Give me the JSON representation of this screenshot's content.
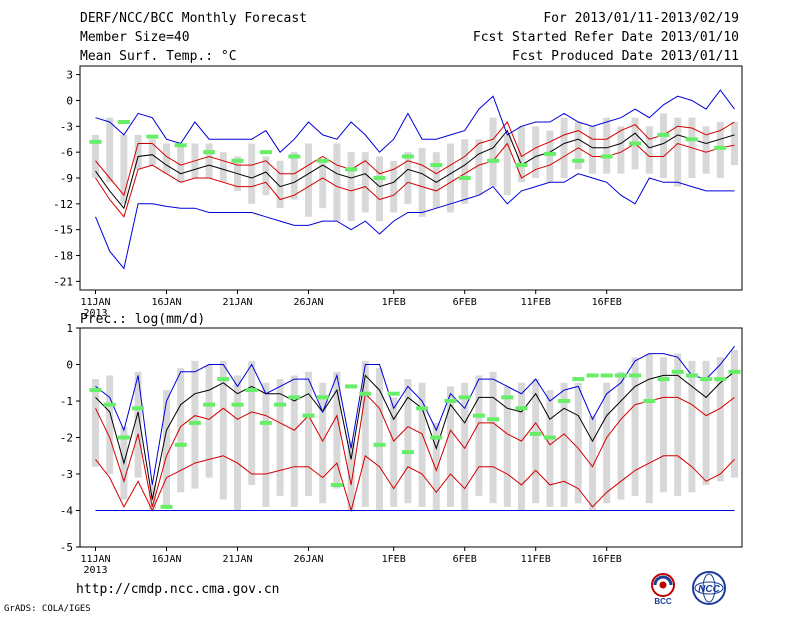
{
  "header": {
    "title": "DERF/NCC/BCC Monthly Forecast",
    "member_size": "Member Size=40",
    "variable": "Mean Surf. Temp.: °C",
    "period": "For 2013/01/11-2013/02/19",
    "fcst_started": "Fcst Started Refer Date 2013/01/10",
    "fcst_produced": "Fcst Produced Date 2013/01/11"
  },
  "footer": {
    "url": "http://cmdp.ncc.cma.gov.cn",
    "credit": "GrADS: COLA/IGES",
    "logo_bcc_label": "BCC",
    "logo_ncc_label": "NCC"
  },
  "colors": {
    "box": "#d8d8d8",
    "obs": "#66ee66",
    "mean": "#000000",
    "inner": "#d40000",
    "outer": "#0000dd",
    "floor": "#3333aa"
  },
  "chart_data": [
    {
      "type": "line",
      "title": "Mean Surf. Temp.: °C",
      "x_tick_labels": [
        "11JAN",
        "16JAN",
        "21JAN",
        "26JAN",
        "1FEB",
        "6FEB",
        "11FEB",
        "16FEB"
      ],
      "x_tick_days": [
        1,
        6,
        11,
        16,
        22,
        27,
        32,
        37
      ],
      "x_year_label": "2013",
      "ylim": [
        -22,
        4
      ],
      "y_ticks": [
        3,
        0,
        -3,
        -6,
        -9,
        -12,
        -15,
        -18,
        -21
      ],
      "series": [
        {
          "name": "ensemble mean",
          "values": [
            -8.2,
            -10.5,
            -12.5,
            -6.5,
            -6.3,
            -7.5,
            -8.5,
            -8,
            -7.5,
            -8,
            -8.5,
            -9,
            -8.3,
            -10,
            -9.5,
            -8.5,
            -7.5,
            -8.5,
            -9,
            -8.5,
            -10,
            -9.5,
            -8,
            -8.5,
            -9.5,
            -8.5,
            -7.5,
            -6.2,
            -5.5,
            -3.5,
            -7.5,
            -6.5,
            -6,
            -5,
            -4.5,
            -5.5,
            -5.5,
            -5,
            -3.8,
            -5.5,
            -5,
            -4,
            -4.5,
            -5,
            -4.5,
            -4
          ]
        },
        {
          "name": "upper inner spread",
          "values": [
            -7,
            -9,
            -11,
            -5,
            -5,
            -6.5,
            -7.5,
            -7,
            -6.5,
            -7,
            -7.5,
            -7.5,
            -7,
            -8.5,
            -8.5,
            -7.5,
            -6.5,
            -7.5,
            -8,
            -7,
            -8.5,
            -8,
            -7,
            -7.5,
            -8.5,
            -7.5,
            -6.5,
            -5,
            -4.5,
            -2.5,
            -6.5,
            -5.5,
            -4.8,
            -4,
            -3.5,
            -4.5,
            -4.5,
            -3.5,
            -2.8,
            -4.5,
            -4,
            -3,
            -3.2,
            -4,
            -3.5,
            -2.5
          ]
        },
        {
          "name": "lower inner spread",
          "values": [
            -9,
            -11.5,
            -13.5,
            -8,
            -7.5,
            -8.5,
            -9.5,
            -9,
            -9,
            -9.5,
            -10,
            -10,
            -9.5,
            -11.5,
            -11,
            -10,
            -9,
            -10,
            -10.5,
            -10,
            -11.5,
            -11,
            -9.5,
            -10,
            -10.5,
            -9.5,
            -8.5,
            -7.5,
            -7,
            -5,
            -9,
            -8,
            -7.5,
            -6.5,
            -5.5,
            -6.5,
            -6.5,
            -6,
            -5,
            -6.5,
            -6.5,
            -5,
            -5.5,
            -6,
            -5.5,
            -5.2
          ]
        },
        {
          "name": "upper outer spread",
          "values": [
            -2,
            -2.5,
            -4,
            -1.5,
            -2,
            -4.5,
            -5,
            -2.5,
            -4.5,
            -4.5,
            -4.5,
            -4.5,
            -3.5,
            -6,
            -4.5,
            -2.5,
            -4,
            -4.5,
            -2.5,
            -4,
            -6,
            -4.5,
            -1.5,
            -4.5,
            -4.5,
            -4,
            -3.5,
            -1,
            0.5,
            -4,
            -3,
            -2.5,
            -2.5,
            -1.5,
            -2.5,
            -3,
            -2.5,
            -2,
            -1,
            -2,
            -0.5,
            0.5,
            0,
            -1,
            1.2,
            -1
          ]
        },
        {
          "name": "lower outer spread",
          "values": [
            -13.5,
            -17.5,
            -19.5,
            -12,
            -12,
            -12.3,
            -12.5,
            -12.5,
            -13,
            -13,
            -13,
            -13,
            -13.5,
            -14,
            -14.5,
            -14.5,
            -14,
            -14,
            -15,
            -14,
            -15.5,
            -14,
            -13,
            -13,
            -12.5,
            -12,
            -11.5,
            -11,
            -10,
            -12,
            -10.5,
            -10,
            -9.5,
            -9.5,
            -8.5,
            -9,
            -9.5,
            -11,
            -12,
            -9,
            -9.5,
            -9.5,
            -10,
            -10.5,
            -10.5,
            -10.5
          ]
        }
      ],
      "boxes": [
        [
          -9,
          -4
        ],
        [
          -9.5,
          -2
        ],
        [
          -12,
          -4
        ],
        [
          -8,
          -4
        ],
        [
          -7.5,
          -4.5
        ],
        [
          -8.5,
          -5
        ],
        [
          -9.5,
          -5
        ],
        [
          -9,
          -5
        ],
        [
          -9,
          -5
        ],
        [
          -9.5,
          -6
        ],
        [
          -10.5,
          -6.5
        ],
        [
          -12,
          -5
        ],
        [
          -11,
          -6.5
        ],
        [
          -12.5,
          -7
        ],
        [
          -11.5,
          -6
        ],
        [
          -13.5,
          -5
        ],
        [
          -12.5,
          -7
        ],
        [
          -14,
          -5
        ],
        [
          -14,
          -6
        ],
        [
          -13,
          -6
        ],
        [
          -14,
          -6.5
        ],
        [
          -13,
          -7
        ],
        [
          -12,
          -6
        ],
        [
          -13.5,
          -5.5
        ],
        [
          -12.5,
          -6
        ],
        [
          -13,
          -5
        ],
        [
          -12,
          -4.5
        ],
        [
          -11,
          -4.5
        ],
        [
          -10,
          -2
        ],
        [
          -11,
          -4
        ],
        [
          -9.5,
          -3
        ],
        [
          -9,
          -3
        ],
        [
          -9.5,
          -3.5
        ],
        [
          -9,
          -2
        ],
        [
          -8,
          -2.5
        ],
        [
          -8.5,
          -3
        ],
        [
          -8.5,
          -2
        ],
        [
          -8.5,
          -3
        ],
        [
          -8,
          -2
        ],
        [
          -8.5,
          -3
        ],
        [
          -9,
          -1.5
        ],
        [
          -10,
          -2
        ],
        [
          -9,
          -2
        ],
        [
          -8.5,
          -3
        ],
        [
          -9,
          -2.5
        ],
        [
          -7.5,
          -2.5
        ]
      ],
      "obs_days": [
        1,
        3,
        5,
        7,
        9,
        11,
        13,
        15,
        17,
        19,
        21,
        23,
        25,
        27,
        29,
        31,
        33,
        35,
        37,
        39,
        41,
        43,
        45
      ],
      "obs_values": [
        -4.8,
        -2.5,
        -4.2,
        -5.2,
        -6,
        -7,
        -6,
        -6.5,
        -7,
        -8,
        -9,
        -6.5,
        -7.5,
        -9,
        -7,
        -7.5,
        -6.2,
        -7,
        -6.5,
        -5,
        -4,
        -4.5,
        -5.5
      ]
    },
    {
      "type": "line",
      "title": "Prec.: log(mm/d)",
      "x_tick_labels": [
        "11JAN",
        "16JAN",
        "21JAN",
        "26JAN",
        "1FEB",
        "6FEB",
        "11FEB",
        "16FEB"
      ],
      "x_tick_days": [
        1,
        6,
        11,
        16,
        22,
        27,
        32,
        37
      ],
      "x_year_label": "2013",
      "ylim": [
        -5,
        1
      ],
      "y_ticks": [
        1,
        0,
        -1,
        -2,
        -3,
        -4,
        -5
      ],
      "floor_value": -4,
      "series": [
        {
          "name": "ensemble mean",
          "values": [
            -0.9,
            -1.3,
            -2.7,
            -1.3,
            -3.7,
            -1.8,
            -1.1,
            -0.8,
            -0.7,
            -0.5,
            -0.8,
            -0.6,
            -0.8,
            -0.8,
            -1,
            -0.8,
            -1.3,
            -0.7,
            -2.6,
            -0.3,
            -0.7,
            -1.5,
            -0.9,
            -1.2,
            -2.3,
            -1.1,
            -1.6,
            -0.9,
            -0.9,
            -1.2,
            -1.3,
            -0.8,
            -1.5,
            -1.2,
            -1.4,
            -2.1,
            -1.4,
            -1,
            -0.6,
            -0.4,
            -0.3,
            -0.3,
            -0.6,
            -0.9,
            -0.5,
            -0.2
          ]
        },
        {
          "name": "upper inner spread",
          "values": [
            -1.2,
            -2,
            -3.2,
            -1.9,
            -3.9,
            -2.5,
            -1.7,
            -1.4,
            -1.5,
            -1.2,
            -1.5,
            -1.3,
            -1.4,
            -1.6,
            -1.8,
            -1.4,
            -2.1,
            -1.4,
            -3.3,
            -0.8,
            -1.2,
            -2.1,
            -1.7,
            -1.9,
            -2.9,
            -1.8,
            -2.3,
            -1.6,
            -1.6,
            -1.9,
            -2.1,
            -1.6,
            -2.2,
            -1.9,
            -2.3,
            -2.8,
            -2,
            -1.5,
            -1.1,
            -1,
            -0.9,
            -0.9,
            -1.1,
            -1.4,
            -1.2,
            -0.9
          ]
        },
        {
          "name": "lower inner spread",
          "values": [
            -2.6,
            -3.1,
            -3.9,
            -3.2,
            -4,
            -3.1,
            -2.9,
            -2.7,
            -2.6,
            -2.5,
            -2.7,
            -3,
            -3,
            -2.9,
            -2.8,
            -2.8,
            -3.1,
            -2.7,
            -4,
            -2.5,
            -2.8,
            -3.4,
            -2.8,
            -3,
            -3.5,
            -3,
            -3.4,
            -2.8,
            -2.8,
            -3,
            -3.3,
            -2.9,
            -3.3,
            -3.2,
            -3.4,
            -3.9,
            -3.5,
            -3.2,
            -2.9,
            -2.7,
            -2.5,
            -2.5,
            -2.8,
            -3.2,
            -3,
            -2.6
          ]
        },
        {
          "name": "upper outer spread",
          "values": [
            -0.6,
            -0.9,
            -1.8,
            -0.3,
            -3.3,
            -1,
            -0.2,
            -0.2,
            0,
            0,
            -0.6,
            0,
            -0.8,
            -0.6,
            -0.4,
            -0.4,
            -1.3,
            -0.3,
            -2.3,
            0,
            0,
            -1.2,
            -0.6,
            -1,
            -1.8,
            -0.8,
            -1.2,
            -0.4,
            -0.4,
            -0.6,
            -0.8,
            -0.4,
            -1,
            -0.7,
            -0.6,
            -1.5,
            -0.8,
            -0.5,
            0.1,
            0.3,
            0.3,
            0.2,
            -0.3,
            -0.4,
            0,
            0.5
          ]
        },
        {
          "name": "lower outer spread",
          "values": [
            -4,
            -4,
            -4,
            -4,
            -4,
            -4,
            -4,
            -4,
            -4,
            -4,
            -4,
            -4,
            -4,
            -4,
            -4,
            -4,
            -4,
            -4,
            -4,
            -4,
            -4,
            -4,
            -4,
            -4,
            -4,
            -4,
            -4,
            -4,
            -4,
            -4,
            -4,
            -4,
            -4,
            -4,
            -4,
            -4,
            -4,
            -4,
            -4,
            -4,
            -4,
            -4,
            -4,
            -4,
            -4,
            -4
          ]
        }
      ],
      "boxes": [
        [
          -2.8,
          -0.4
        ],
        [
          -3,
          -0.3
        ],
        [
          -3.7,
          -1.7
        ],
        [
          -3.1,
          -0.2
        ],
        [
          -4,
          -3.3
        ],
        [
          -3.9,
          -0.7
        ],
        [
          -3.5,
          -0.1
        ],
        [
          -3.4,
          0.1
        ],
        [
          -3.1,
          0
        ],
        [
          -3.7,
          0.1
        ],
        [
          -4,
          -0.3
        ],
        [
          -3.3,
          0.1
        ],
        [
          -3.9,
          -0.5
        ],
        [
          -3.6,
          -0.4
        ],
        [
          -3.9,
          -0.3
        ],
        [
          -3.6,
          -0.2
        ],
        [
          -3.8,
          -0.5
        ],
        [
          -3.4,
          -0.2
        ],
        [
          -4,
          -2.1
        ],
        [
          -3.9,
          0.1
        ],
        [
          -4,
          -0.1
        ],
        [
          -3.9,
          -0.9
        ],
        [
          -3.8,
          -0.4
        ],
        [
          -3.9,
          -0.5
        ],
        [
          -4,
          -1.6
        ],
        [
          -3.9,
          -0.6
        ],
        [
          -4,
          -0.5
        ],
        [
          -3.6,
          -0.3
        ],
        [
          -3.8,
          -0.2
        ],
        [
          -3.9,
          -0.6
        ],
        [
          -4,
          -0.5
        ],
        [
          -3.8,
          -0.4
        ],
        [
          -3.9,
          -0.7
        ],
        [
          -3.9,
          -0.5
        ],
        [
          -3.8,
          -0.5
        ],
        [
          -4,
          -1.4
        ],
        [
          -3.8,
          -0.5
        ],
        [
          -3.7,
          -0.2
        ],
        [
          -3.6,
          0.2
        ],
        [
          -3.8,
          0.3
        ],
        [
          -3.5,
          0.2
        ],
        [
          -3.6,
          0.3
        ],
        [
          -3.5,
          0.1
        ],
        [
          -3.3,
          0.1
        ],
        [
          -3.2,
          0.2
        ],
        [
          -3.1,
          0.4
        ]
      ],
      "obs_days": [
        1,
        2,
        3,
        4,
        6,
        7,
        8,
        9,
        10,
        11,
        12,
        13,
        14,
        15,
        16,
        17,
        18,
        19,
        20,
        21,
        22,
        23,
        24,
        25,
        26,
        27,
        28,
        29,
        30,
        31,
        32,
        33,
        34,
        35,
        36,
        37,
        38,
        39,
        40,
        41,
        42,
        43,
        44,
        45,
        46
      ],
      "obs_values": [
        -0.7,
        -1.1,
        -2,
        -1.2,
        -3.9,
        -2.2,
        -1.6,
        -1.1,
        -0.4,
        -1.1,
        -0.7,
        -1.6,
        -1.1,
        -0.9,
        -1.4,
        -0.9,
        -3.3,
        -0.6,
        -0.8,
        -2.2,
        -0.8,
        -2.4,
        -1.2,
        -2,
        -1,
        -0.9,
        -1.4,
        -1.5,
        -0.9,
        -1.2,
        -1.9,
        -2,
        -1,
        -0.4,
        -0.3,
        -0.3,
        -0.3,
        -0.3,
        -1,
        -0.4,
        -0.2,
        -0.3,
        -0.4,
        -0.4,
        -0.2
      ]
    }
  ]
}
